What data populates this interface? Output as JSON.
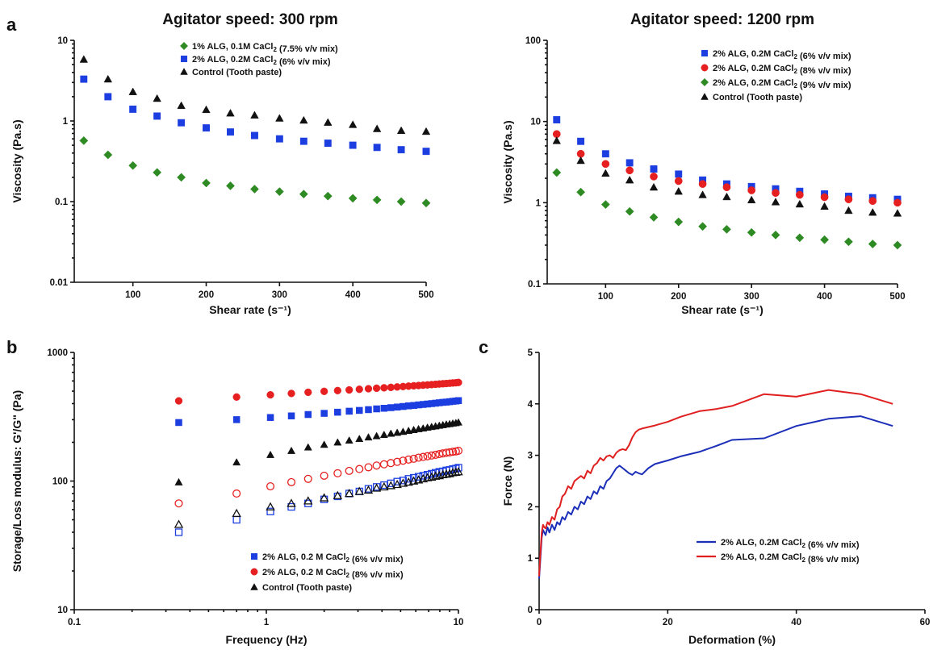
{
  "figure": {
    "panel_letters": [
      "a",
      "b",
      "c"
    ]
  },
  "chart_data": [
    {
      "id": "a1",
      "type": "scatter",
      "title": "Agitator speed: 300 rpm",
      "xlabel": "Shear rate (s⁻¹)",
      "ylabel": "Viscosity (Pa.s)",
      "xscale": "linear",
      "yscale": "log",
      "xlim": [
        20,
        500
      ],
      "ylim": [
        0.01,
        10
      ],
      "xticks": [
        100,
        200,
        300,
        400,
        500
      ],
      "yticks": [
        0.01,
        0.1,
        1,
        10
      ],
      "ytick_labels": [
        "0.01",
        "0.1",
        "1",
        "10"
      ],
      "legend_position": "top",
      "x": [
        33,
        66,
        100,
        133,
        166,
        200,
        233,
        266,
        300,
        333,
        366,
        400,
        433,
        466,
        500
      ],
      "series": [
        {
          "name": "1% ALG, 0.1M CaCl₂ (7.5% v/v mix)",
          "marker": "diamond",
          "color": "#2e8b23",
          "values": [
            0.57,
            0.38,
            0.28,
            0.23,
            0.2,
            0.17,
            0.157,
            0.143,
            0.133,
            0.124,
            0.117,
            0.11,
            0.105,
            0.1,
            0.096
          ]
        },
        {
          "name": "2% ALG, 0.2M CaCl₂ (6% v/v mix)",
          "marker": "square",
          "color": "#1c3ee0",
          "values": [
            3.3,
            2.0,
            1.4,
            1.15,
            0.95,
            0.82,
            0.73,
            0.66,
            0.6,
            0.56,
            0.53,
            0.5,
            0.47,
            0.44,
            0.42
          ]
        },
        {
          "name": "Control (Tooth paste)",
          "marker": "triangle",
          "color": "#111111",
          "values": [
            5.8,
            3.3,
            2.3,
            1.9,
            1.55,
            1.38,
            1.25,
            1.18,
            1.08,
            1.02,
            0.96,
            0.9,
            0.8,
            0.76,
            0.74
          ]
        }
      ]
    },
    {
      "id": "a2",
      "type": "scatter",
      "title": "Agitator speed: 1200 rpm",
      "xlabel": "Shear rate (s⁻¹)",
      "ylabel": "Viscosity (Pa.s)",
      "xscale": "linear",
      "yscale": "log",
      "xlim": [
        20,
        500
      ],
      "ylim": [
        0.1,
        100
      ],
      "xticks": [
        100,
        200,
        300,
        400,
        500
      ],
      "yticks": [
        0.1,
        1,
        10,
        100
      ],
      "ytick_labels": [
        "0.1",
        "1",
        "10",
        "100"
      ],
      "legend_position": "top",
      "x": [
        33,
        66,
        100,
        133,
        166,
        200,
        233,
        266,
        300,
        333,
        366,
        400,
        433,
        466,
        500
      ],
      "series": [
        {
          "name": "2% ALG, 0.2M CaCl₂ (6% v/v mix)",
          "marker": "square",
          "color": "#1c3ee0",
          "values": [
            10.5,
            5.7,
            4.0,
            3.1,
            2.6,
            2.25,
            1.9,
            1.7,
            1.58,
            1.48,
            1.38,
            1.28,
            1.2,
            1.15,
            1.1
          ]
        },
        {
          "name": "2% ALG, 0.2M CaCl₂ (8% v/v mix)",
          "marker": "circle",
          "color": "#e62020",
          "values": [
            7.0,
            4.0,
            3.0,
            2.5,
            2.1,
            1.85,
            1.7,
            1.55,
            1.42,
            1.32,
            1.25,
            1.17,
            1.1,
            1.05,
            1.0
          ]
        },
        {
          "name": "2% ALG, 0.2M CaCl₂ (9% v/v mix)",
          "marker": "diamond",
          "color": "#2e8b23",
          "values": [
            2.35,
            1.35,
            0.95,
            0.78,
            0.66,
            0.58,
            0.51,
            0.47,
            0.43,
            0.4,
            0.37,
            0.35,
            0.33,
            0.31,
            0.3
          ]
        },
        {
          "name": "Control (Tooth paste)",
          "marker": "triangle",
          "color": "#111111",
          "values": [
            5.8,
            3.3,
            2.3,
            1.9,
            1.55,
            1.38,
            1.25,
            1.18,
            1.08,
            1.02,
            0.96,
            0.9,
            0.8,
            0.76,
            0.74
          ]
        }
      ]
    },
    {
      "id": "b",
      "type": "scatter",
      "title": "",
      "xlabel": "Frequency (Hz)",
      "ylabel": "Storage/Loss modulus: G'/G\" (Pa)",
      "xscale": "log",
      "yscale": "log",
      "xlim": [
        0.1,
        10
      ],
      "ylim": [
        10,
        1000
      ],
      "xticks": [
        0.1,
        1,
        10
      ],
      "xtick_labels": [
        "0.1",
        "1",
        "10"
      ],
      "yticks": [
        10,
        100,
        1000
      ],
      "ytick_labels": [
        "10",
        "100",
        "1000"
      ],
      "legend_position": "bottom-right",
      "x": [
        0.35,
        0.7,
        1.05,
        1.35,
        1.65,
        2.0,
        2.35,
        2.7,
        3.05,
        3.4,
        3.75,
        4.1,
        4.45,
        4.8,
        5.15,
        5.5,
        5.85,
        6.2,
        6.55,
        6.9,
        7.25,
        7.6,
        7.95,
        8.3,
        8.65,
        9.0,
        9.35,
        9.7,
        10.0
      ],
      "series": [
        {
          "name": "2% ALG, 0.2 M CaCl₂ (6% v/v mix)",
          "marker": "square",
          "color": "#1c3ee0",
          "filled": true,
          "show_in_legend": true,
          "values": [
            285,
            300,
            312,
            321,
            329,
            336,
            343,
            349,
            354,
            359,
            364,
            368,
            372,
            376,
            380,
            384,
            387,
            391,
            394,
            397,
            400,
            403,
            406,
            409,
            411,
            414,
            417,
            419,
            422
          ]
        },
        {
          "name": "2% ALG, 0.2 M CaCl₂ (8% v/v mix)",
          "marker": "circle",
          "color": "#e62020",
          "filled": true,
          "show_in_legend": true,
          "values": [
            420,
            450,
            468,
            480,
            490,
            498,
            505,
            511,
            517,
            522,
            527,
            531,
            535,
            539,
            543,
            547,
            550,
            553,
            556,
            559,
            562,
            565,
            568,
            571,
            573,
            576,
            579,
            581,
            584
          ]
        },
        {
          "name": "Control (Tooth paste)",
          "marker": "triangle",
          "color": "#111111",
          "filled": true,
          "show_in_legend": true,
          "values": [
            98,
            140,
            160,
            172,
            183,
            192,
            200,
            207,
            213,
            219,
            224,
            229,
            234,
            238,
            242,
            246,
            250,
            254,
            257,
            261,
            264,
            267,
            270,
            273,
            276,
            278,
            281,
            283,
            286
          ]
        },
        {
          "name": "",
          "marker": "square",
          "color": "#1c3ee0",
          "filled": false,
          "show_in_legend": false,
          "values": [
            40,
            50,
            58,
            63,
            67,
            72,
            76,
            80,
            83,
            87,
            90,
            93,
            96,
            99,
            101,
            104,
            106,
            108,
            110,
            112,
            114,
            116,
            118,
            119,
            121,
            122,
            124,
            125,
            127
          ]
        },
        {
          "name": "",
          "marker": "circle",
          "color": "#e62020",
          "filled": false,
          "show_in_legend": false,
          "values": [
            67,
            80,
            91,
            98,
            104,
            110,
            115,
            120,
            124,
            128,
            132,
            135,
            138,
            141,
            144,
            147,
            149,
            152,
            154,
            156,
            158,
            160,
            162,
            164,
            166,
            167,
            169,
            170,
            172
          ]
        },
        {
          "name": "",
          "marker": "triangle",
          "color": "#111111",
          "filled": false,
          "show_in_legend": false,
          "values": [
            46,
            56,
            63,
            67,
            70,
            74,
            77,
            80,
            83,
            85,
            88,
            90,
            92,
            94,
            96,
            98,
            100,
            102,
            104,
            106,
            107,
            109,
            110,
            112,
            113,
            114,
            116,
            117,
            118
          ]
        }
      ]
    },
    {
      "id": "c",
      "type": "line",
      "title": "",
      "xlabel": "Deformation (%)",
      "ylabel": "Force (N)",
      "xscale": "linear",
      "yscale": "linear",
      "xlim": [
        0,
        60
      ],
      "ylim": [
        0,
        5
      ],
      "xticks": [
        0,
        20,
        40,
        60
      ],
      "yticks": [
        0,
        1,
        2,
        3,
        4,
        5
      ],
      "legend_position": "bottom-right",
      "series": [
        {
          "name": "2% ALG, 0.2M CaCl₂ (6% v/v mix)",
          "color": "#1c2fb8",
          "x": [
            0,
            0.2,
            0.4,
            0.6,
            0.8,
            1.0,
            1.3,
            1.6,
            2.0,
            2.4,
            2.8,
            3.2,
            3.6,
            4.0,
            4.5,
            5.0,
            5.5,
            6.0,
            6.5,
            7.0,
            7.5,
            8.0,
            8.5,
            9.0,
            9.5,
            10.0,
            10.5,
            11.0,
            11.5,
            12.0,
            12.5,
            13.0,
            13.5,
            14.0,
            14.5,
            15.0,
            15.5,
            16.0,
            17.0,
            18.0,
            20.0,
            22.0,
            25.0,
            27.5,
            30.0,
            35.0,
            40.0,
            45.0,
            50.0,
            55.0
          ],
          "y": [
            0.6,
            1.0,
            1.4,
            1.55,
            1.5,
            1.45,
            1.6,
            1.5,
            1.65,
            1.55,
            1.7,
            1.65,
            1.8,
            1.75,
            1.9,
            1.85,
            2.0,
            1.95,
            2.1,
            2.05,
            2.2,
            2.15,
            2.3,
            2.25,
            2.4,
            2.35,
            2.5,
            2.55,
            2.65,
            2.75,
            2.8,
            2.75,
            2.7,
            2.65,
            2.62,
            2.68,
            2.65,
            2.63,
            2.75,
            2.83,
            2.9,
            2.98,
            3.07,
            3.18,
            3.3,
            3.33,
            3.57,
            3.71,
            3.76,
            3.57
          ]
        },
        {
          "name": "2% ALG, 0.2M CaCl₂ (8% v/v mix)",
          "color": "#e02020",
          "x": [
            0,
            0.2,
            0.4,
            0.6,
            0.8,
            1.0,
            1.3,
            1.6,
            2.0,
            2.4,
            2.8,
            3.2,
            3.6,
            4.0,
            4.5,
            5.0,
            5.5,
            6.0,
            6.5,
            7.0,
            7.5,
            8.0,
            8.5,
            9.0,
            9.5,
            10.0,
            10.5,
            11.0,
            11.5,
            12.0,
            12.5,
            13.0,
            13.5,
            14.0,
            14.5,
            15.0,
            15.5,
            16.0,
            17.0,
            18.0,
            20.0,
            22.0,
            25.0,
            27.5,
            30.0,
            35.0,
            40.0,
            45.0,
            50.0,
            55.0
          ],
          "y": [
            0.65,
            1.1,
            1.5,
            1.65,
            1.6,
            1.58,
            1.7,
            1.65,
            1.8,
            1.75,
            1.95,
            2.0,
            2.2,
            2.25,
            2.4,
            2.35,
            2.5,
            2.55,
            2.6,
            2.55,
            2.7,
            2.65,
            2.8,
            2.85,
            2.95,
            2.9,
            2.98,
            3.0,
            2.95,
            3.05,
            3.1,
            3.12,
            3.1,
            3.2,
            3.35,
            3.45,
            3.5,
            3.52,
            3.55,
            3.58,
            3.65,
            3.75,
            3.86,
            3.9,
            3.96,
            4.19,
            4.14,
            4.27,
            4.19,
            4.0
          ]
        }
      ]
    }
  ]
}
